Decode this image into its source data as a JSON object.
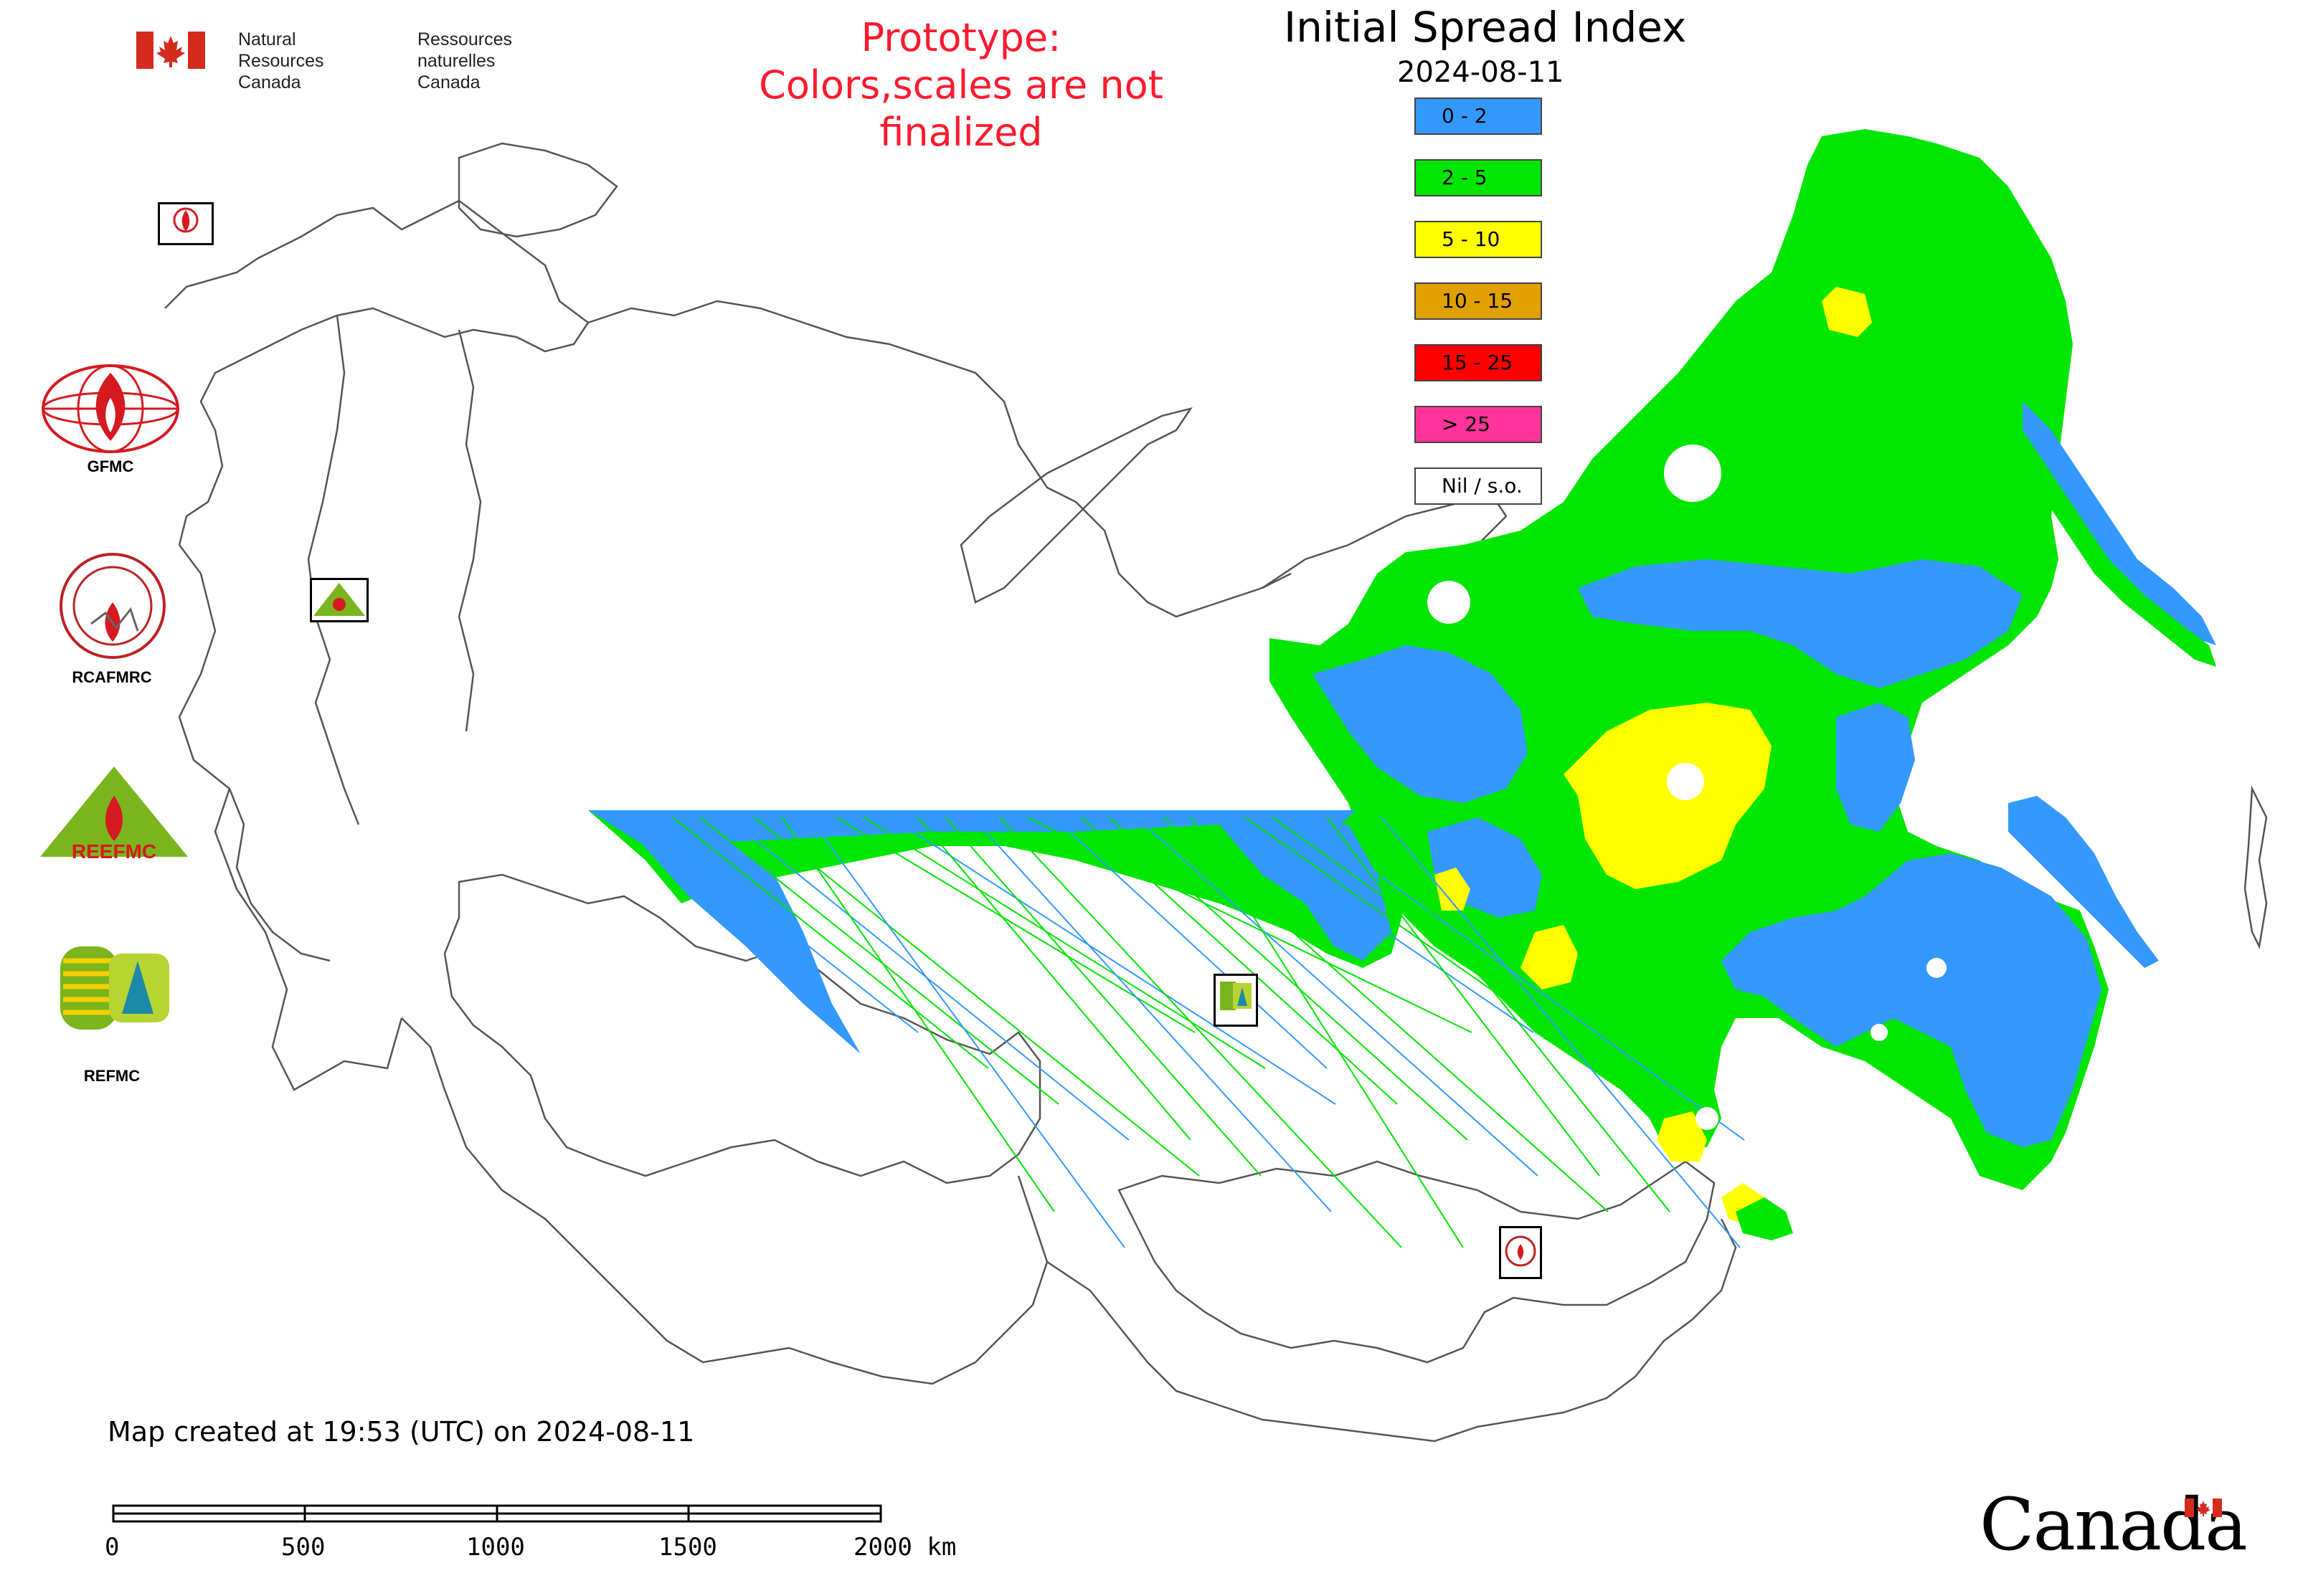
{
  "title": "Initial Spread Index",
  "date": "2024-08-11",
  "prototype_notice": [
    "Prototype:",
    "Colors,scales are not finalized"
  ],
  "agency": {
    "en": [
      "Natural Resources",
      "Canada"
    ],
    "fr": [
      "Ressources naturelles",
      "Canada"
    ]
  },
  "legend": [
    {
      "label": "0 - 2",
      "color": "#3399ff"
    },
    {
      "label": "2 - 5",
      "color": "#00e600"
    },
    {
      "label": "5 - 10",
      "color": "#ffff00"
    },
    {
      "label": "10 - 15",
      "color": "#e0a000"
    },
    {
      "label": "15 - 25",
      "color": "#ff0000"
    },
    {
      "label": "> 25",
      "color": "#ff3399"
    },
    {
      "label": "Nil / s.o.",
      "color": "#ffffff"
    }
  ],
  "side_logos": [
    {
      "label": "GFMC",
      "icon": "gfmc-globe-flame-icon"
    },
    {
      "label": "RCAFMRC",
      "icon": "rcafmrc-seal-icon"
    },
    {
      "label": "",
      "icon": "reefmc-triangle-icon",
      "wordmark": "REEFMC"
    },
    {
      "label": "REFMC",
      "icon": "refmc-sigma-icon"
    }
  ],
  "map_markers": [
    {
      "label": "GFMC",
      "icon": "gfmc-marker-icon"
    },
    {
      "label": "REEFMC",
      "icon": "reefmc-marker-icon"
    },
    {
      "label": "REFMC",
      "icon": "refmc-marker-icon"
    },
    {
      "label": "RCAFMRC",
      "icon": "rcafmrc-marker-icon"
    }
  ],
  "footer": {
    "created": "Map created at 19:53 (UTC) on 2024-08-11",
    "scale_labels": [
      "0",
      "500",
      "1000",
      "1500",
      "2000 km"
    ],
    "wordmark": "Canada"
  }
}
